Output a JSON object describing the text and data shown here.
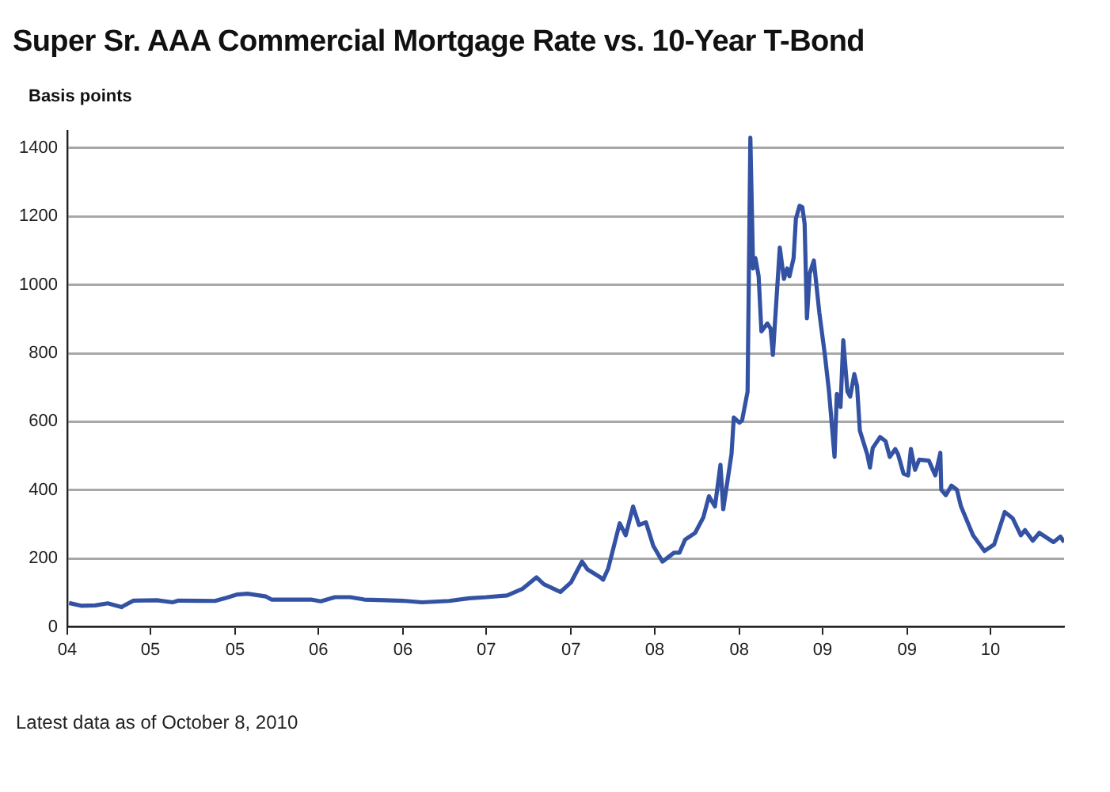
{
  "chart_data": {
    "type": "line",
    "title": "Super Sr. AAA Commercial Mortgage Rate vs. 10-Year T-Bond",
    "ylabel": "Basis points",
    "annotations": [
      "Latest data as of October 8, 2010"
    ],
    "xlim": [
      "2004-11-01",
      "2010-10-08"
    ],
    "xticks": [
      {
        "value": "2004-11-01",
        "label": "04"
      },
      {
        "value": "2005-05-01",
        "label": "05"
      },
      {
        "value": "2005-11-01",
        "label": "05"
      },
      {
        "value": "2006-05-01",
        "label": "06"
      },
      {
        "value": "2006-11-01",
        "label": "06"
      },
      {
        "value": "2007-05-01",
        "label": "07"
      },
      {
        "value": "2007-11-01",
        "label": "07"
      },
      {
        "value": "2008-05-01",
        "label": "08"
      },
      {
        "value": "2008-11-01",
        "label": "08"
      },
      {
        "value": "2009-05-01",
        "label": "09"
      },
      {
        "value": "2009-11-01",
        "label": "09"
      },
      {
        "value": "2010-05-01",
        "label": "10"
      }
    ],
    "ylim": [
      0,
      1450
    ],
    "yticks": [
      0,
      200,
      400,
      600,
      800,
      1000,
      1200,
      1400
    ],
    "grid": "y",
    "legend": false,
    "marker": "none",
    "line_style": "solid",
    "x": [
      "2004-11-05",
      "2004-12-01",
      "2005-01-01",
      "2005-01-28",
      "2005-02-27",
      "2005-03-01",
      "2005-03-25",
      "2005-05-15",
      "2005-06-18",
      "2005-07-01",
      "2005-09-18",
      "2005-10-12",
      "2005-11-06",
      "2005-11-28",
      "2006-01-07",
      "2006-01-19",
      "2006-04-15",
      "2006-05-06",
      "2006-06-06",
      "2006-07-09",
      "2006-08-09",
      "2006-09-24",
      "2006-11-06",
      "2006-12-12",
      "2007-02-09",
      "2007-03-25",
      "2007-05-01",
      "2007-06-15",
      "2007-07-18",
      "2007-08-18",
      "2007-09-03",
      "2007-09-27",
      "2007-10-09",
      "2007-11-01",
      "2007-11-25",
      "2007-12-07",
      "2008-01-04",
      "2008-01-10",
      "2008-01-21",
      "2008-02-01",
      "2008-02-15",
      "2008-02-28",
      "2008-03-15",
      "2008-03-28",
      "2008-04-12",
      "2008-04-28",
      "2008-05-18",
      "2008-06-12",
      "2008-06-24",
      "2008-07-06",
      "2008-07-28",
      "2008-08-15",
      "2008-08-27",
      "2008-09-09",
      "2008-09-21",
      "2008-09-27",
      "2008-10-15",
      "2008-10-20",
      "2008-11-01",
      "2008-11-07",
      "2008-11-19",
      "2008-11-25",
      "2008-12-01",
      "2008-12-06",
      "2008-12-13",
      "2008-12-19",
      "2009-01-01",
      "2009-01-08",
      "2009-01-13",
      "2009-01-28",
      "2009-02-06",
      "2009-02-13",
      "2009-02-18",
      "2009-02-27",
      "2009-03-04",
      "2009-03-12",
      "2009-03-18",
      "2009-03-23",
      "2009-03-28",
      "2009-04-03",
      "2009-04-12",
      "2009-04-24",
      "2009-05-06",
      "2009-05-15",
      "2009-05-27",
      "2009-06-01",
      "2009-06-09",
      "2009-06-15",
      "2009-06-24",
      "2009-06-30",
      "2009-07-09",
      "2009-07-15",
      "2009-07-21",
      "2009-08-06",
      "2009-08-12",
      "2009-08-18",
      "2009-09-03",
      "2009-09-15",
      "2009-09-24",
      "2009-10-06",
      "2009-10-12",
      "2009-10-24",
      "2009-11-03",
      "2009-11-09",
      "2009-11-18",
      "2009-11-27",
      "2009-12-18",
      "2010-01-01",
      "2010-01-12",
      "2010-01-14",
      "2010-01-24",
      "2010-02-05",
      "2010-02-17",
      "2010-02-26",
      "2010-03-24",
      "2010-04-18",
      "2010-05-09",
      "2010-06-01",
      "2010-06-18",
      "2010-07-06",
      "2010-07-15",
      "2010-08-01",
      "2010-08-15",
      "2010-09-15",
      "2010-09-30",
      "2010-10-08"
    ],
    "series": [
      {
        "color": "#3352a3",
        "values": [
          70,
          62,
          63,
          69,
          58,
          60,
          77,
          78,
          72,
          77,
          76,
          85,
          95,
          97,
          89,
          80,
          80,
          75,
          87,
          87,
          80,
          78,
          76,
          72,
          76,
          84,
          87,
          92,
          111,
          145,
          125,
          110,
          102,
          130,
          191,
          168,
          145,
          138,
          171,
          229,
          303,
          268,
          352,
          298,
          306,
          237,
          191,
          217,
          217,
          255,
          275,
          321,
          382,
          352,
          474,
          344,
          505,
          612,
          597,
          604,
          688,
          1430,
          1048,
          1078,
          1025,
          864,
          887,
          872,
          795,
          1109,
          1017,
          1048,
          1025,
          1078,
          1193,
          1231,
          1227,
          1178,
          902,
          1033,
          1071,
          918,
          795,
          688,
          497,
          681,
          643,
          838,
          688,
          673,
          739,
          704,
          574,
          505,
          466,
          523,
          555,
          543,
          497,
          520,
          505,
          448,
          443,
          520,
          459,
          489,
          486,
          443,
          509,
          401,
          385,
          413,
          401,
          352,
          268,
          222,
          241,
          336,
          318,
          268,
          283,
          252,
          275,
          248,
          264,
          248
        ]
      }
    ]
  }
}
